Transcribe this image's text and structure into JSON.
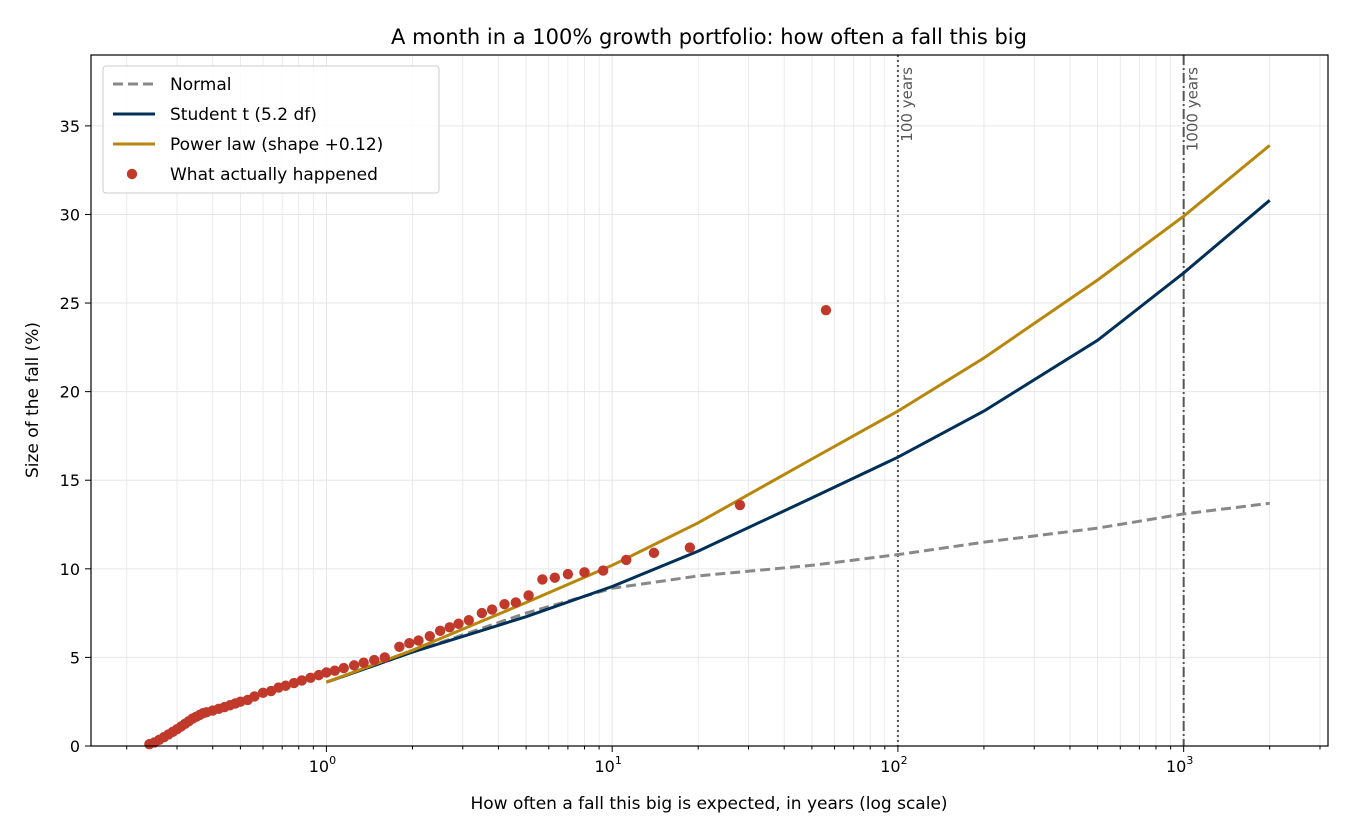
{
  "chart_data": {
    "type": "line",
    "title": "A month in a 100% growth portfolio: how often a fall this big",
    "xlabel": "How often a fall this big is expected, in years (log scale)",
    "ylabel": "Size of the fall (%)",
    "x_scale": "log",
    "xlim": [
      0.15,
      3200
    ],
    "ylim": [
      0,
      39
    ],
    "x_ticks": [
      {
        "value": 1,
        "base": "10",
        "exp": "0"
      },
      {
        "value": 10,
        "base": "10",
        "exp": "1"
      },
      {
        "value": 100,
        "base": "10",
        "exp": "2"
      },
      {
        "value": 1000,
        "base": "10",
        "exp": "3"
      }
    ],
    "y_ticks": [
      0,
      5,
      10,
      15,
      20,
      25,
      30,
      35
    ],
    "grid": true,
    "legend_position": "top-left",
    "series": [
      {
        "name": "Normal",
        "style": "dashed",
        "color": "#888888",
        "x": [
          1,
          2,
          5,
          10,
          20,
          50,
          100,
          200,
          500,
          1000,
          2000
        ],
        "y": [
          3.6,
          5.3,
          7.5,
          8.9,
          9.6,
          10.2,
          10.8,
          11.5,
          12.3,
          13.1,
          13.7
        ]
      },
      {
        "name": "Student t (5.2 df)",
        "style": "solid",
        "color": "#003057",
        "x": [
          1,
          2,
          5,
          10,
          20,
          50,
          100,
          200,
          500,
          1000,
          2000
        ],
        "y": [
          3.6,
          5.3,
          7.3,
          9.0,
          11.0,
          14.0,
          16.3,
          18.9,
          22.9,
          26.7,
          30.8
        ]
      },
      {
        "name": "Power law (shape +0.12)",
        "style": "solid",
        "color": "#B8860B",
        "x": [
          1,
          2,
          5,
          10,
          20,
          50,
          100,
          200,
          500,
          1000,
          2000
        ],
        "y": [
          3.6,
          5.4,
          8.1,
          10.2,
          12.6,
          16.2,
          18.9,
          21.9,
          26.3,
          29.9,
          33.9
        ]
      },
      {
        "name": "What actually happened",
        "style": "markers",
        "color": "#C0392B",
        "x": [
          0.24,
          0.25,
          0.26,
          0.27,
          0.28,
          0.29,
          0.3,
          0.31,
          0.32,
          0.33,
          0.34,
          0.35,
          0.36,
          0.37,
          0.38,
          0.4,
          0.42,
          0.44,
          0.46,
          0.48,
          0.5,
          0.53,
          0.56,
          0.6,
          0.64,
          0.68,
          0.72,
          0.77,
          0.82,
          0.88,
          0.94,
          1.0,
          1.07,
          1.15,
          1.25,
          1.35,
          1.47,
          1.6,
          1.8,
          1.95,
          2.1,
          2.3,
          2.5,
          2.7,
          2.9,
          3.15,
          3.5,
          3.8,
          4.2,
          4.6,
          5.1,
          5.7,
          6.3,
          7.0,
          8.0,
          9.3,
          11.2,
          14.0,
          18.7,
          28.0,
          56.0
        ],
        "y": [
          0.1,
          0.2,
          0.35,
          0.5,
          0.65,
          0.8,
          0.95,
          1.1,
          1.25,
          1.4,
          1.55,
          1.65,
          1.75,
          1.85,
          1.9,
          2.0,
          2.1,
          2.2,
          2.3,
          2.4,
          2.5,
          2.6,
          2.8,
          3.0,
          3.1,
          3.3,
          3.4,
          3.55,
          3.7,
          3.85,
          4.0,
          4.15,
          4.25,
          4.4,
          4.55,
          4.7,
          4.85,
          5.0,
          5.6,
          5.8,
          5.95,
          6.2,
          6.5,
          6.7,
          6.9,
          7.1,
          7.5,
          7.7,
          8.0,
          8.1,
          8.5,
          9.4,
          9.5,
          9.7,
          9.8,
          9.9,
          10.5,
          10.9,
          11.2,
          13.6,
          24.6
        ]
      }
    ],
    "reference_lines": [
      {
        "x": 100,
        "label": "100 years",
        "style": "dotted"
      },
      {
        "x": 1000,
        "label": "1000 years",
        "style": "dashdot"
      }
    ]
  }
}
